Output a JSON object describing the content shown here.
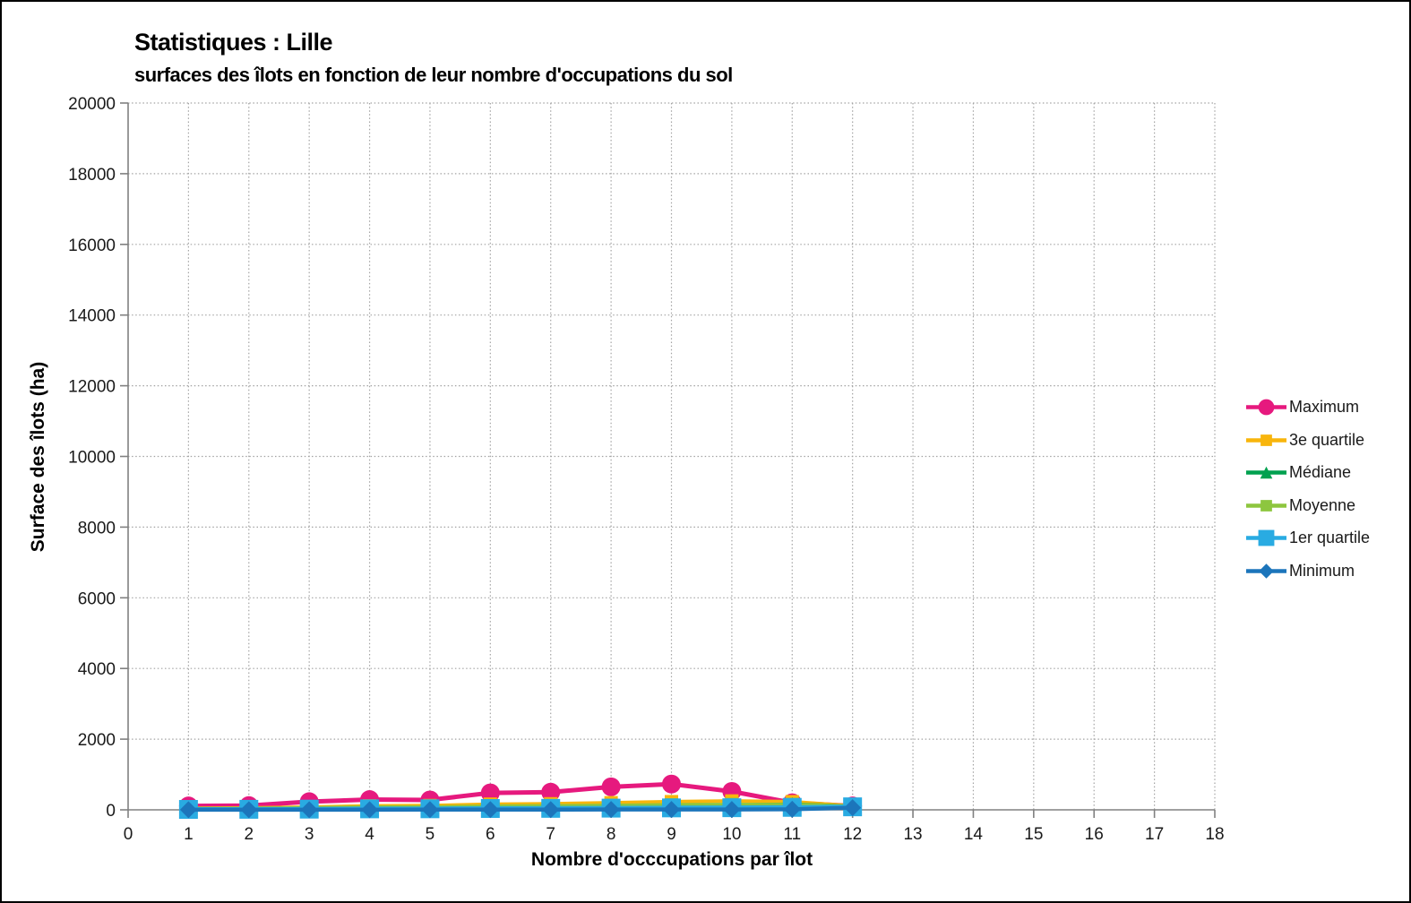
{
  "chart_data": {
    "type": "line",
    "title": "Statistiques : Lille",
    "subtitle": "surfaces des îlots en fonction de leur nombre d'occupations du sol",
    "xlabel": "Nombre d'occcupations par îlot",
    "ylabel": "Surface des îlots (ha)",
    "xlim": [
      0,
      18
    ],
    "ylim": [
      0,
      20000
    ],
    "x_ticks": [
      0,
      1,
      2,
      3,
      4,
      5,
      6,
      7,
      8,
      9,
      10,
      11,
      12,
      13,
      14,
      15,
      16,
      17,
      18
    ],
    "y_ticks": [
      0,
      2000,
      4000,
      6000,
      8000,
      10000,
      12000,
      14000,
      16000,
      18000,
      20000
    ],
    "grid": "dotted",
    "grid_color": "#A3A3A3",
    "axis_color": "#808080",
    "text_color": "#1A1A1A",
    "legend_position": "right",
    "x": [
      1,
      2,
      3,
      4,
      5,
      6,
      7,
      8,
      9,
      10,
      11,
      12
    ],
    "series": [
      {
        "name": "Maximum",
        "color": "#E6197E",
        "marker": "circle",
        "marker_size": 21,
        "line_width": 5,
        "values": [
          110,
          120,
          230,
          290,
          280,
          480,
          500,
          650,
          730,
          520,
          200,
          110
        ]
      },
      {
        "name": "3e quartile",
        "color": "#F8B50C",
        "marker": "square",
        "marker_size": 15,
        "line_width": 4,
        "values": [
          45,
          55,
          75,
          110,
          120,
          160,
          170,
          200,
          230,
          250,
          230,
          110
        ]
      },
      {
        "name": "Médiane",
        "color": "#00A14F",
        "marker": "triangle",
        "marker_size": 16,
        "line_width": 4,
        "values": [
          25,
          30,
          40,
          55,
          60,
          75,
          80,
          95,
          110,
          130,
          160,
          100
        ]
      },
      {
        "name": "Moyenne",
        "color": "#8DC63F",
        "marker": "square",
        "marker_size": 15,
        "line_width": 4,
        "values": [
          35,
          40,
          55,
          75,
          80,
          100,
          110,
          125,
          140,
          150,
          150,
          100
        ]
      },
      {
        "name": "1er quartile",
        "color": "#29ABE2",
        "marker": "square",
        "marker_size": 21,
        "line_width": 5,
        "values": [
          12,
          15,
          20,
          28,
          30,
          38,
          42,
          48,
          55,
          60,
          70,
          85
        ]
      },
      {
        "name": "Minimum",
        "color": "#1C75BB",
        "marker": "diamond",
        "marker_size": 17,
        "line_width": 4.5,
        "values": [
          2,
          2,
          3,
          4,
          5,
          6,
          7,
          8,
          9,
          10,
          15,
          60
        ]
      }
    ]
  }
}
